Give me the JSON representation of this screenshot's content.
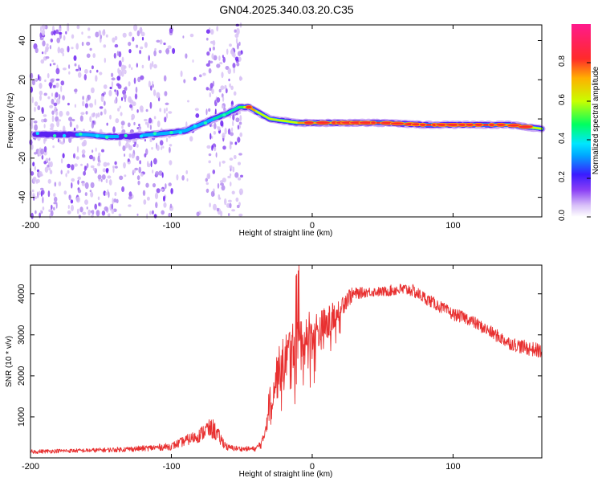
{
  "title": "GN04.2025.340.03.20.C35",
  "chart_data": [
    {
      "type": "heatmap",
      "title": "GN04.2025.340.03.20.C35",
      "xlabel": "Height of straight line (km)",
      "ylabel": "Frequency (Hz)",
      "xlim": [
        -200,
        163
      ],
      "ylim": [
        -50,
        48
      ],
      "x_ticks": [
        -200,
        -100,
        0,
        100
      ],
      "y_ticks": [
        -40,
        -20,
        0,
        20,
        40
      ],
      "colorbar": {
        "label": "Normalized spectral amplitude",
        "range": [
          0,
          1
        ],
        "ticks": [
          0.0,
          0.2,
          0.4,
          0.6,
          0.8
        ],
        "colors": [
          "#ffffff",
          "#d8c0f8",
          "#8a3ff5",
          "#3a1cff",
          "#00e6ff",
          "#00ff60",
          "#c8ff00",
          "#ffb000",
          "#ff2a2a",
          "#ff1a8c"
        ]
      },
      "signal_ridge": {
        "x": [
          -195,
          -180,
          -160,
          -145,
          -130,
          -115,
          -100,
          -90,
          -80,
          -70,
          -60,
          -52,
          -45,
          -40,
          -35,
          -30,
          -20,
          -10,
          0,
          20,
          50,
          80,
          100,
          120,
          140,
          163
        ],
        "frequency": [
          -8,
          -8,
          -8,
          -9,
          -9,
          -8,
          -7,
          -6,
          -3,
          0,
          3,
          6,
          6,
          4,
          2,
          0,
          -1,
          -2,
          -2,
          -2,
          -2,
          -3,
          -3,
          -3,
          -3,
          -5
        ],
        "strength": [
          0.35,
          0.35,
          0.4,
          0.4,
          0.35,
          0.4,
          0.45,
          0.45,
          0.45,
          0.5,
          0.55,
          0.6,
          0.9,
          0.85,
          0.8,
          0.8,
          0.8,
          0.85,
          0.9,
          0.92,
          0.95,
          0.95,
          0.95,
          0.95,
          0.9,
          0.8
        ]
      }
    },
    {
      "type": "line",
      "title": "",
      "xlabel": "Height of straight line (km)",
      "ylabel": "SNR (10 * v/v)",
      "xlim": [
        -200,
        163
      ],
      "ylim": [
        0,
        4700
      ],
      "x_ticks": [
        -200,
        -100,
        0,
        100
      ],
      "y_ticks": [
        1000,
        2000,
        3000,
        4000
      ],
      "series": [
        {
          "name": "SNR",
          "color": "#e83030",
          "x": [
            -200,
            -180,
            -160,
            -140,
            -120,
            -100,
            -90,
            -80,
            -75,
            -70,
            -65,
            -60,
            -50,
            -40,
            -35,
            -30,
            -25,
            -20,
            -15,
            -10,
            -8,
            -5,
            0,
            5,
            10,
            15,
            20,
            25,
            30,
            40,
            50,
            60,
            70,
            80,
            90,
            100,
            110,
            120,
            130,
            140,
            150,
            163
          ],
          "y": [
            150,
            170,
            180,
            200,
            230,
            280,
            420,
            550,
            700,
            700,
            450,
            250,
            220,
            220,
            400,
            1400,
            2000,
            2400,
            2700,
            2800,
            2800,
            3000,
            3000,
            3100,
            3200,
            3400,
            3700,
            3900,
            4000,
            4050,
            4050,
            4100,
            4100,
            3900,
            3700,
            3500,
            3400,
            3200,
            3000,
            2800,
            2700,
            2600
          ],
          "noise": [
            50,
            50,
            50,
            60,
            70,
            90,
            130,
            170,
            220,
            250,
            160,
            80,
            60,
            60,
            150,
            450,
            600,
            600,
            600,
            700,
            900,
            700,
            600,
            500,
            500,
            400,
            300,
            250,
            150,
            120,
            120,
            150,
            160,
            150,
            150,
            150,
            150,
            150,
            160,
            160,
            180,
            180
          ]
        }
      ]
    }
  ]
}
